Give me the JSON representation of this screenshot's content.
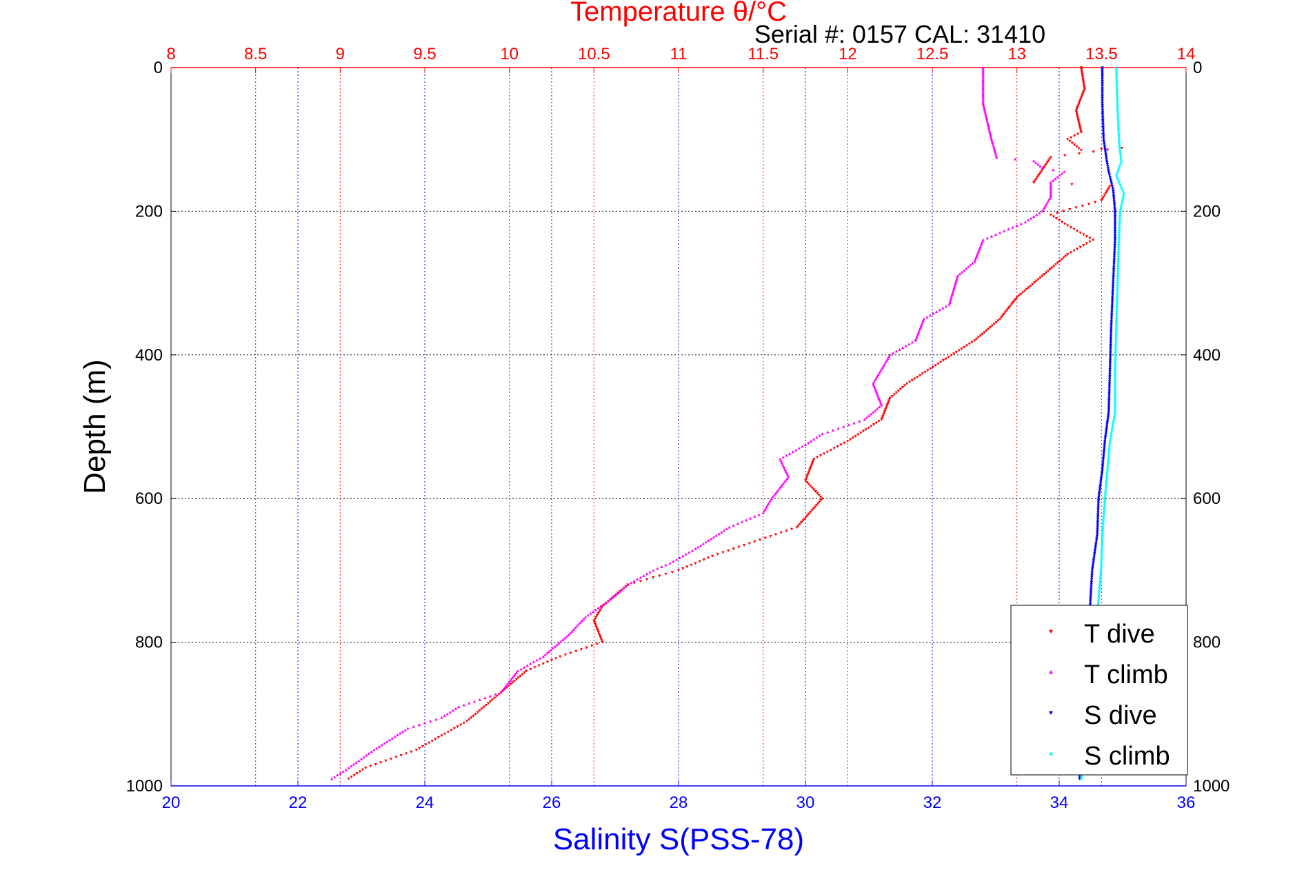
{
  "chart_data": {
    "type": "scatter",
    "title": "Temperature θ/°C",
    "subtitle": "Serial #: 0157  CAL: 31410",
    "ylabel": "Depth (m)",
    "xlabel_bottom": "Salinity S(PSS-78)",
    "xlabel_top": "Temperature θ/°C",
    "ylim": [
      0,
      1000
    ],
    "y_reversed": true,
    "yticks": [
      "0",
      "200",
      "400",
      "600",
      "800",
      "1000"
    ],
    "xlim_salinity": [
      20,
      36
    ],
    "xticks_salinity": [
      "20",
      "22",
      "24",
      "26",
      "28",
      "30",
      "32",
      "34",
      "36"
    ],
    "xlim_temperature": [
      8,
      14
    ],
    "xticks_temperature": [
      "8",
      "8.5",
      "9",
      "9.5",
      "10",
      "10.5",
      "11",
      "11.5",
      "12",
      "12.5",
      "13",
      "13.5",
      "14"
    ],
    "grid": true,
    "legend_position": "bottom-right",
    "series": [
      {
        "name": "T dive",
        "axis": "temperature",
        "color": "#ff0000",
        "marker": "triangle-down",
        "points": [
          [
            13.38,
            0
          ],
          [
            13.4,
            30
          ],
          [
            13.35,
            60
          ],
          [
            13.38,
            90
          ],
          [
            13.3,
            100
          ],
          [
            13.38,
            115
          ],
          [
            13.62,
            112
          ],
          [
            13.2,
            125
          ],
          [
            13.1,
            160
          ],
          [
            13.55,
            165
          ],
          [
            13.5,
            185
          ],
          [
            13.2,
            205
          ],
          [
            13.3,
            220
          ],
          [
            13.45,
            240
          ],
          [
            13.3,
            260
          ],
          [
            13.15,
            290
          ],
          [
            13.0,
            320
          ],
          [
            12.9,
            350
          ],
          [
            12.75,
            380
          ],
          [
            12.55,
            410
          ],
          [
            12.35,
            440
          ],
          [
            12.25,
            460
          ],
          [
            12.2,
            490
          ],
          [
            12.0,
            520
          ],
          [
            11.8,
            545
          ],
          [
            11.75,
            575
          ],
          [
            11.85,
            600
          ],
          [
            11.7,
            640
          ],
          [
            11.45,
            660
          ],
          [
            11.2,
            680
          ],
          [
            11.0,
            700
          ],
          [
            10.7,
            720
          ],
          [
            10.55,
            750
          ],
          [
            10.5,
            770
          ],
          [
            10.55,
            800
          ],
          [
            10.3,
            820
          ],
          [
            10.1,
            840
          ],
          [
            9.95,
            870
          ],
          [
            9.85,
            890
          ],
          [
            9.75,
            910
          ],
          [
            9.6,
            930
          ],
          [
            9.45,
            950
          ],
          [
            9.15,
            975
          ],
          [
            9.05,
            990
          ]
        ]
      },
      {
        "name": "T climb",
        "axis": "temperature",
        "color": "#ff00ff",
        "marker": "triangle-up",
        "points": [
          [
            12.8,
            0
          ],
          [
            12.8,
            50
          ],
          [
            12.85,
            100
          ],
          [
            12.88,
            125
          ],
          [
            13.1,
            130
          ],
          [
            13.15,
            140
          ],
          [
            13.28,
            145
          ],
          [
            13.2,
            160
          ],
          [
            13.2,
            180
          ],
          [
            13.15,
            200
          ],
          [
            13.05,
            215
          ],
          [
            12.8,
            240
          ],
          [
            12.75,
            270
          ],
          [
            12.65,
            290
          ],
          [
            12.6,
            330
          ],
          [
            12.45,
            350
          ],
          [
            12.4,
            380
          ],
          [
            12.25,
            400
          ],
          [
            12.2,
            420
          ],
          [
            12.15,
            440
          ],
          [
            12.2,
            470
          ],
          [
            12.1,
            490
          ],
          [
            11.85,
            510
          ],
          [
            11.75,
            525
          ],
          [
            11.6,
            545
          ],
          [
            11.65,
            570
          ],
          [
            11.55,
            600
          ],
          [
            11.5,
            620
          ],
          [
            11.3,
            640
          ],
          [
            11.1,
            670
          ],
          [
            10.95,
            690
          ],
          [
            10.85,
            700
          ],
          [
            10.7,
            720
          ],
          [
            10.6,
            740
          ],
          [
            10.45,
            765
          ],
          [
            10.35,
            790
          ],
          [
            10.2,
            820
          ],
          [
            10.05,
            840
          ],
          [
            9.95,
            870
          ],
          [
            9.7,
            890
          ],
          [
            9.6,
            905
          ],
          [
            9.4,
            920
          ],
          [
            9.2,
            950
          ],
          [
            9.05,
            975
          ],
          [
            8.95,
            990
          ]
        ]
      },
      {
        "name": "S dive",
        "axis": "salinity",
        "color": "#0000ff",
        "marker": "triangle-down",
        "points": [
          [
            34.68,
            0
          ],
          [
            34.68,
            50
          ],
          [
            34.7,
            100
          ],
          [
            34.75,
            130
          ],
          [
            34.78,
            145
          ],
          [
            34.85,
            170
          ],
          [
            34.88,
            200
          ],
          [
            34.88,
            240
          ],
          [
            34.85,
            300
          ],
          [
            34.82,
            360
          ],
          [
            34.8,
            420
          ],
          [
            34.78,
            480
          ],
          [
            34.72,
            520
          ],
          [
            34.68,
            560
          ],
          [
            34.62,
            600
          ],
          [
            34.6,
            650
          ],
          [
            34.52,
            700
          ],
          [
            34.48,
            760
          ],
          [
            34.44,
            800
          ],
          [
            34.4,
            880
          ],
          [
            34.35,
            950
          ],
          [
            34.32,
            990
          ]
        ]
      },
      {
        "name": "S climb",
        "axis": "salinity",
        "color": "#00ffff",
        "marker": "triangle-up",
        "points": [
          [
            34.9,
            0
          ],
          [
            34.92,
            60
          ],
          [
            34.95,
            110
          ],
          [
            34.98,
            130
          ],
          [
            34.9,
            150
          ],
          [
            35.02,
            175
          ],
          [
            34.96,
            200
          ],
          [
            34.94,
            240
          ],
          [
            34.92,
            300
          ],
          [
            34.9,
            360
          ],
          [
            34.88,
            420
          ],
          [
            34.88,
            480
          ],
          [
            34.8,
            520
          ],
          [
            34.76,
            560
          ],
          [
            34.72,
            600
          ],
          [
            34.68,
            650
          ],
          [
            34.66,
            700
          ],
          [
            34.6,
            760
          ],
          [
            34.55,
            800
          ],
          [
            34.5,
            870
          ],
          [
            34.42,
            940
          ],
          [
            34.35,
            990
          ]
        ]
      }
    ]
  }
}
